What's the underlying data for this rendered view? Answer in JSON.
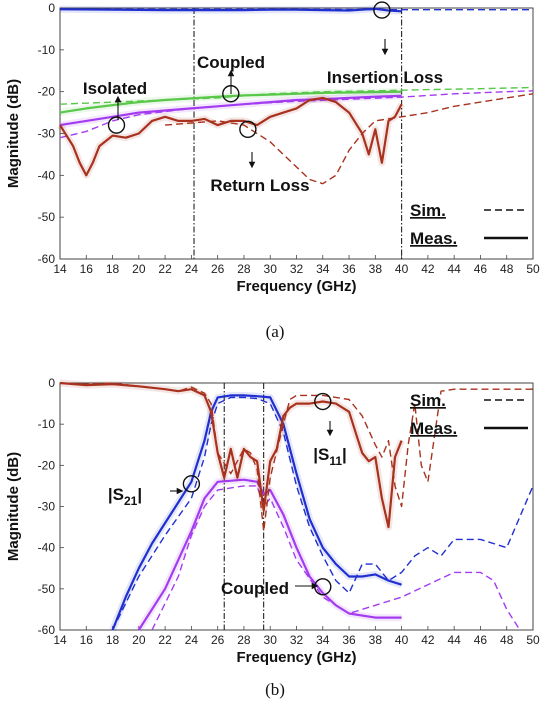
{
  "chart_data": [
    {
      "type": "line",
      "caption": "(a)",
      "xlabel": "Frequency (GHz)",
      "ylabel": "Magnitude (dB)",
      "xlim": [
        14,
        50
      ],
      "ylim": [
        -60,
        0
      ],
      "xticks": [
        14,
        16,
        18,
        20,
        22,
        24,
        26,
        28,
        30,
        32,
        34,
        36,
        38,
        40,
        42,
        44,
        46,
        48,
        50
      ],
      "yticks": [
        0,
        -10,
        -20,
        -30,
        -40,
        -50,
        -60
      ],
      "vlines": [
        24.2,
        40
      ],
      "legend": {
        "sim": "Sim.",
        "meas": "Meas.",
        "placement": "bottom-right"
      },
      "annotations": [
        {
          "label": "Isolated",
          "x": 18.3,
          "y": -28
        },
        {
          "label": "Coupled",
          "x": 27,
          "y": -20.5
        },
        {
          "label": "Insertion Loss",
          "x": 38.5,
          "y": -0.5
        },
        {
          "label": "Return Loss",
          "x": 28.3,
          "y": -29
        }
      ],
      "series": [
        {
          "color": "#1f2fd0",
          "style": "solid",
          "x": [
            14,
            18,
            22,
            26,
            28,
            30,
            32,
            34,
            36,
            37,
            38,
            38.5,
            39,
            40
          ],
          "y": [
            -0.3,
            -0.4,
            -0.5,
            -0.5,
            -0.5,
            -0.4,
            -0.4,
            -0.5,
            -0.6,
            -0.4,
            -0.2,
            -0.4,
            -0.6,
            -0.8
          ]
        },
        {
          "color": "#1f2fd0",
          "style": "dashed",
          "x": [
            14,
            20,
            30,
            40,
            45,
            50
          ],
          "y": [
            -0.3,
            -0.3,
            -0.3,
            -0.4,
            -0.4,
            -0.4
          ]
        },
        {
          "color": "#59c84a",
          "style": "solid",
          "x": [
            14,
            16,
            18,
            20,
            22,
            24,
            26,
            28,
            30,
            32,
            34,
            36,
            38,
            40
          ],
          "y": [
            -25,
            -24,
            -23.2,
            -22.5,
            -22,
            -21.6,
            -21.2,
            -20.9,
            -20.7,
            -20.5,
            -20.3,
            -20.2,
            -20.1,
            -20
          ]
        },
        {
          "color": "#59c84a",
          "style": "dashed",
          "x": [
            14,
            18,
            22,
            26,
            30,
            34,
            38,
            42,
            46,
            50
          ],
          "y": [
            -23,
            -22.5,
            -22,
            -21.5,
            -20.5,
            -20,
            -19.8,
            -19.5,
            -19.3,
            -19
          ]
        },
        {
          "color": "#a33cf0",
          "style": "solid",
          "x": [
            14,
            16,
            18,
            20,
            22,
            24,
            26,
            28,
            30,
            32,
            34,
            36,
            38,
            40
          ],
          "y": [
            -28,
            -27,
            -26,
            -25,
            -24.5,
            -24,
            -23.5,
            -23,
            -22.5,
            -22,
            -21.8,
            -21.5,
            -21.2,
            -21
          ]
        },
        {
          "color": "#a33cf0",
          "style": "dashed",
          "x": [
            14,
            16,
            18,
            20,
            24,
            28,
            32,
            36,
            40,
            44,
            48,
            50
          ],
          "y": [
            -31,
            -29.5,
            -27,
            -25.5,
            -24,
            -23,
            -22.3,
            -21.8,
            -21.3,
            -20.5,
            -20,
            -19.8
          ]
        },
        {
          "color": "#a8321e",
          "style": "solid",
          "x": [
            14,
            15,
            15.5,
            16,
            16.5,
            17,
            18,
            19,
            20,
            21,
            22,
            23,
            24,
            25,
            26,
            27,
            28,
            29,
            30,
            31,
            32,
            33,
            34,
            35,
            36,
            37,
            37.5,
            38,
            38.5,
            39,
            39.5,
            40
          ],
          "y": [
            -28,
            -33,
            -37,
            -40,
            -37,
            -33,
            -30.5,
            -31,
            -30,
            -27,
            -26,
            -27,
            -27,
            -26.5,
            -28,
            -27,
            -27,
            -28,
            -26,
            -25,
            -24,
            -22,
            -21.5,
            -22.5,
            -25,
            -30,
            -35,
            -29,
            -37,
            -27,
            -26,
            -23
          ]
        },
        {
          "color": "#a8321e",
          "style": "dashed",
          "x": [
            22,
            24,
            26,
            28,
            30,
            32,
            33,
            34,
            35,
            36,
            37,
            38,
            40,
            42,
            44,
            46,
            48,
            50
          ],
          "y": [
            -28,
            -27.5,
            -27,
            -28,
            -32,
            -38,
            -41,
            -42,
            -40,
            -34,
            -30,
            -27,
            -26,
            -25,
            -23.5,
            -22.5,
            -21.5,
            -20.5
          ]
        }
      ]
    },
    {
      "type": "line",
      "caption": "(b)",
      "xlabel": "Frequency (GHz)",
      "ylabel": "Magnitude (dB)",
      "xlim": [
        14,
        50
      ],
      "ylim": [
        -60,
        0
      ],
      "xticks": [
        14,
        16,
        18,
        20,
        22,
        24,
        26,
        28,
        30,
        32,
        34,
        36,
        38,
        40,
        42,
        44,
        46,
        48,
        50
      ],
      "yticks": [
        0,
        -10,
        -20,
        -30,
        -40,
        -50,
        -60
      ],
      "vlines": [
        26.5,
        29.5
      ],
      "legend": {
        "sim": "Sim.",
        "meas": "Meas.",
        "placement": "top-right"
      },
      "annotations": [
        {
          "label": "|S",
          "sub": "11",
          "x": 34,
          "y": -4.5
        },
        {
          "label": "|S",
          "sub": "21",
          "x": 24,
          "y": -24.5
        },
        {
          "label": "Coupled",
          "x": 34,
          "y": -49.5
        }
      ],
      "series": [
        {
          "color": "#1f2fd0",
          "style": "solid",
          "x": [
            18,
            19,
            20,
            21,
            22,
            23,
            24,
            25,
            25.5,
            26,
            27,
            28,
            29,
            30,
            31,
            32,
            33,
            34,
            35,
            36,
            37,
            38,
            39,
            40
          ],
          "y": [
            -60,
            -52,
            -45,
            -39,
            -34,
            -29,
            -24,
            -14,
            -7,
            -3.5,
            -3,
            -3,
            -3.2,
            -3.5,
            -10,
            -22,
            -33,
            -40,
            -44,
            -47,
            -47,
            -46.5,
            -48,
            -49
          ]
        },
        {
          "color": "#1f2fd0",
          "style": "dashed",
          "x": [
            18,
            20,
            22,
            24,
            25,
            25.5,
            26,
            27,
            28,
            29,
            30,
            31,
            32,
            33,
            34,
            35,
            36,
            37,
            38,
            39,
            40,
            41,
            42,
            43,
            44,
            46,
            48,
            50
          ],
          "y": [
            -60,
            -47,
            -37,
            -28,
            -18,
            -10,
            -5,
            -3.5,
            -3.5,
            -3.8,
            -5,
            -12,
            -25,
            -35,
            -42,
            -48,
            -51,
            -44,
            -44,
            -48,
            -46,
            -42,
            -40,
            -42,
            -38,
            -38,
            -40,
            -25
          ]
        },
        {
          "color": "#a33cf0",
          "style": "solid",
          "x": [
            20,
            22,
            24,
            25,
            26,
            28,
            29,
            29.5,
            30,
            31,
            32,
            33,
            34,
            35,
            36,
            38,
            40
          ],
          "y": [
            -60,
            -50,
            -36,
            -28,
            -24,
            -23.5,
            -24,
            -27,
            -26,
            -32,
            -40,
            -47,
            -51,
            -54,
            -56,
            -57,
            -57
          ]
        },
        {
          "color": "#a33cf0",
          "style": "dashed",
          "x": [
            21,
            23,
            24,
            25,
            26,
            28,
            29,
            29.5,
            30,
            31,
            32,
            34,
            36,
            38,
            40,
            42,
            44,
            46,
            47,
            48,
            49
          ],
          "y": [
            -60,
            -47,
            -37,
            -30,
            -26,
            -25,
            -25,
            -30,
            -28,
            -35,
            -43,
            -52,
            -56,
            -54,
            -52,
            -49,
            -46,
            -46,
            -48,
            -55,
            -60
          ]
        },
        {
          "color": "#a8321e",
          "style": "solid",
          "x": [
            14,
            16,
            18,
            20,
            22,
            23,
            24,
            25,
            25.5,
            26,
            26.5,
            27,
            27.5,
            28,
            28.5,
            29,
            29.5,
            30,
            30.5,
            31,
            31.5,
            32,
            33,
            34,
            35,
            36,
            36.5,
            37,
            37.5,
            38,
            38.5,
            39,
            39.5,
            40
          ],
          "y": [
            0,
            -0.5,
            -0.3,
            -0.8,
            -1.5,
            -2,
            -1.5,
            -3,
            -7,
            -17,
            -23,
            -16,
            -23,
            -16,
            -18,
            -19,
            -31,
            -19,
            -16,
            -8,
            -6,
            -5,
            -5,
            -4.5,
            -5,
            -7,
            -12,
            -17,
            -19,
            -18,
            -28,
            -35,
            -18,
            -14
          ]
        },
        {
          "color": "#a8321e",
          "style": "dashed",
          "x": [
            14,
            16,
            18,
            20,
            22,
            23,
            24,
            25,
            25.5,
            26,
            27,
            28,
            28.5,
            29,
            29.5,
            30,
            31,
            31.5,
            32,
            33,
            34,
            35,
            36,
            37,
            38,
            38.5,
            39,
            39.5,
            40,
            40.5,
            41,
            41.5,
            42,
            43,
            44,
            46,
            48,
            50
          ],
          "y": [
            0,
            -0.3,
            0,
            -0.8,
            -1.5,
            -2,
            -1,
            -2.5,
            -5,
            -17,
            -22,
            -16,
            -17,
            -21,
            -36,
            -23,
            -10,
            -4,
            -3,
            -3,
            -3,
            -3.5,
            -4,
            -8,
            -15,
            -18,
            -14,
            -25,
            -30,
            -15,
            -5,
            -20,
            -24,
            -2,
            -1.5,
            -1.5,
            -1.5,
            -1.5
          ]
        }
      ]
    }
  ]
}
